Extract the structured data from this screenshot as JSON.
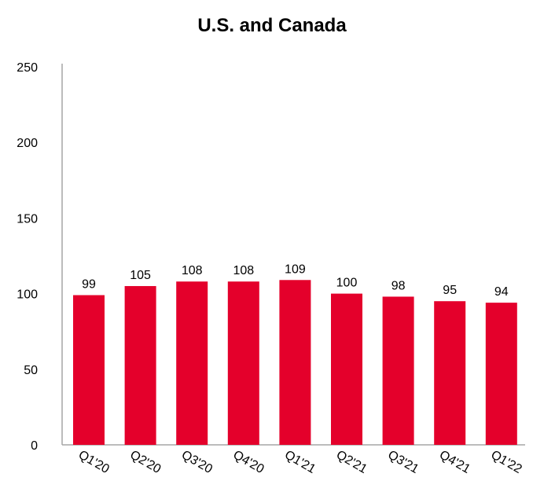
{
  "chart_data": {
    "type": "bar",
    "title": "U.S. and Canada",
    "xlabel": "",
    "ylabel": "",
    "categories": [
      "Q1'20",
      "Q2'20",
      "Q3'20",
      "Q4'20",
      "Q1'21",
      "Q2'21",
      "Q3'21",
      "Q4'21",
      "Q1'22"
    ],
    "values": [
      99,
      105,
      108,
      108,
      109,
      100,
      98,
      95,
      94
    ],
    "ylim": [
      0,
      250
    ],
    "yticks": [
      0,
      50,
      100,
      150,
      200,
      250
    ],
    "grid": false,
    "bar_color": "#e4002b",
    "axis_color": "#a6a6a6"
  }
}
